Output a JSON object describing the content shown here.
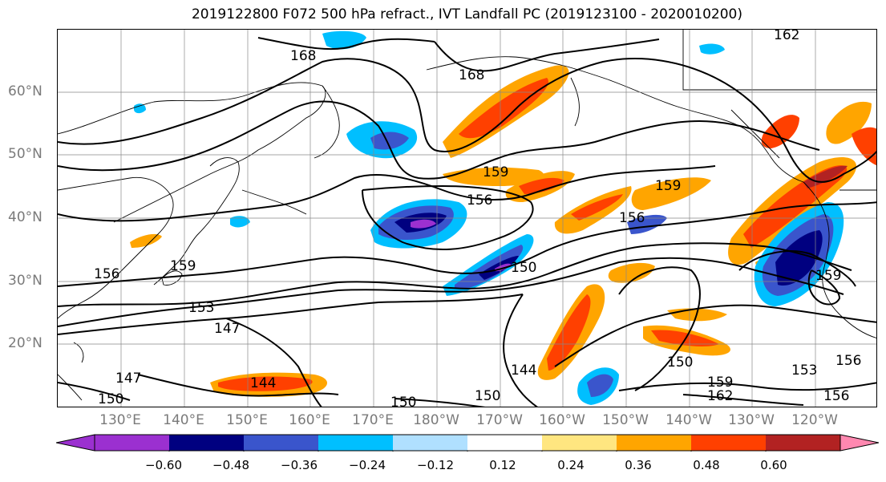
{
  "title": "2019122800 F072 500 hPa refract., IVT Landfall PC (2019123100 - 2020010200)",
  "lat_labels": [
    "60°N",
    "50°N",
    "40°N",
    "30°N",
    "20°N"
  ],
  "lon_labels": [
    "130°E",
    "140°E",
    "150°E",
    "160°E",
    "170°E",
    "180°W",
    "170°W",
    "160°W",
    "150°W",
    "140°W",
    "130°W",
    "120°W"
  ],
  "contour_labels": [
    "168",
    "168",
    "162",
    "159",
    "159",
    "156",
    "156",
    "156",
    "159",
    "150",
    "159",
    "153",
    "147",
    "147",
    "144",
    "144",
    "150",
    "150",
    "150",
    "150",
    "153",
    "156",
    "156",
    "159",
    "162"
  ],
  "colorbar": {
    "colors": [
      "#9b30d0",
      "#000080",
      "#3a55cc",
      "#00bfff",
      "#b0e0ff",
      "#ffffff",
      "#ffe680",
      "#ffa500",
      "#ff4000",
      "#b22222",
      "#ff88b0"
    ],
    "tick_labels": [
      "−0.60",
      "−0.48",
      "−0.36",
      "−0.24",
      "−0.12",
      "0.12",
      "0.24",
      "0.36",
      "0.48",
      "0.60"
    ]
  }
}
